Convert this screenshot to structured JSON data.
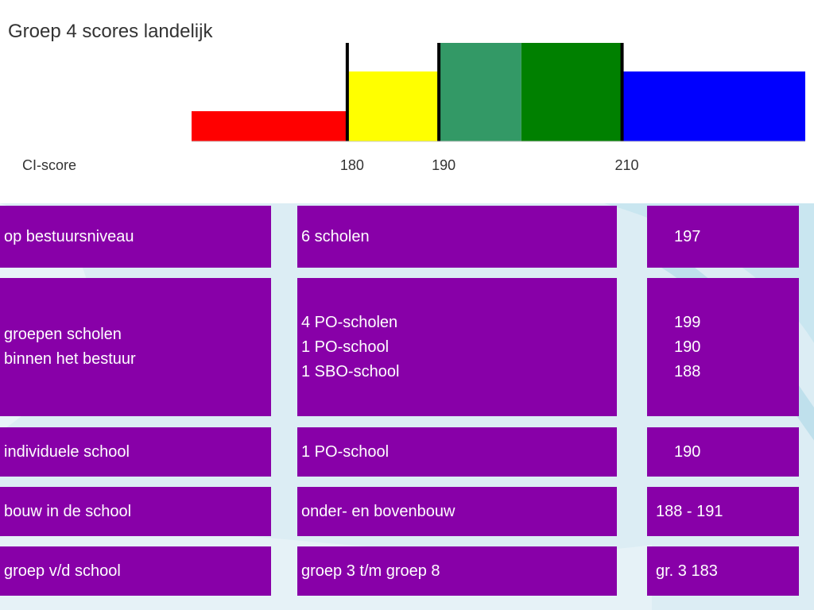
{
  "chart_data": {
    "type": "bar",
    "title": "Groep 4 scores landelijk",
    "xlabel": "CI-score",
    "ticks": [
      180,
      190,
      210
    ],
    "xlim": [
      163,
      230
    ],
    "bands": [
      {
        "from": 163,
        "to": 180,
        "color": "#ff0000",
        "level": "low"
      },
      {
        "from": 180,
        "to": 190,
        "color": "#ffff00",
        "level": "mid"
      },
      {
        "from": 190,
        "to": 199,
        "color": "#339966",
        "level": "high"
      },
      {
        "from": 199,
        "to": 210,
        "color": "#008000",
        "level": "high"
      },
      {
        "from": 210,
        "to": 230,
        "color": "#0000ff",
        "level": "mid"
      }
    ],
    "markers": [
      180,
      190,
      210
    ]
  },
  "table": {
    "rows": [
      {
        "level": "op bestuursniveau",
        "description": "6 scholen",
        "score": "197"
      },
      {
        "level": "groepen scholen\nbinnen het bestuur",
        "description": "4 PO-scholen\n1 PO-school\n1 SBO-school",
        "score": "199\n190\n188"
      },
      {
        "level": "individuele school",
        "description": "1 PO-school",
        "score": "190"
      },
      {
        "level": "bouw in de school",
        "description": "onder- en bovenbouw",
        "score": "188 - 191"
      },
      {
        "level": "groep v/d school",
        "description": "groep 3 t/m groep 8",
        "score": "gr. 3 183"
      }
    ]
  }
}
